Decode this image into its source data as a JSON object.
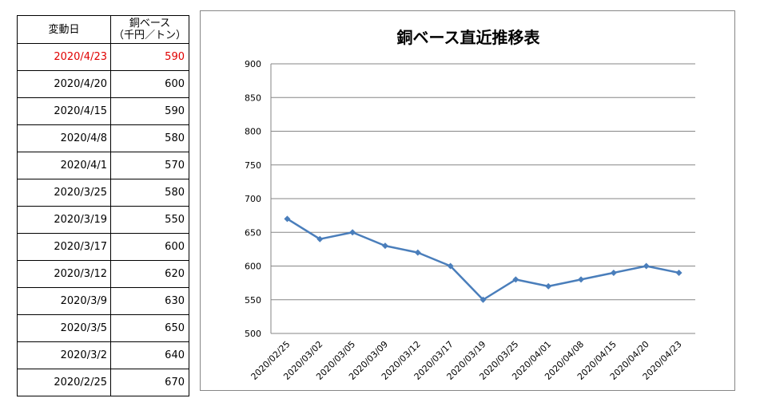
{
  "table": {
    "header_date": "変動日",
    "header_price_line1": "銅ベース",
    "header_price_line2": "（千円／トン）",
    "rows": [
      {
        "date": "2020/4/23",
        "value": "590",
        "highlight": true
      },
      {
        "date": "2020/4/20",
        "value": "600"
      },
      {
        "date": "2020/4/15",
        "value": "590"
      },
      {
        "date": "2020/4/8",
        "value": "580"
      },
      {
        "date": "2020/4/1",
        "value": "570"
      },
      {
        "date": "2020/3/25",
        "value": "580"
      },
      {
        "date": "2020/3/19",
        "value": "550"
      },
      {
        "date": "2020/3/17",
        "value": "600"
      },
      {
        "date": "2020/3/12",
        "value": "620"
      },
      {
        "date": "2020/3/9",
        "value": "630"
      },
      {
        "date": "2020/3/5",
        "value": "650"
      },
      {
        "date": "2020/3/2",
        "value": "640"
      },
      {
        "date": "2020/2/25",
        "value": "670"
      }
    ],
    "highlight_color": "#e00000"
  },
  "chart_data": {
    "type": "line",
    "title": "銅ベース直近推移表",
    "categories": [
      "2020/02/25",
      "2020/03/02",
      "2020/03/05",
      "2020/03/09",
      "2020/03/12",
      "2020/03/17",
      "2020/03/19",
      "2020/03/25",
      "2020/04/01",
      "2020/04/08",
      "2020/04/15",
      "2020/04/20",
      "2020/04/23"
    ],
    "series": [
      {
        "values": [
          670,
          640,
          650,
          630,
          620,
          600,
          550,
          580,
          570,
          580,
          590,
          600,
          590
        ],
        "color": "#4a7ebb",
        "marker": "diamond"
      }
    ],
    "ylim": [
      500,
      900
    ],
    "yticks": [
      "500",
      "550",
      "600",
      "650",
      "700",
      "750",
      "800",
      "850",
      "900"
    ],
    "grid": true,
    "legend": "none"
  }
}
